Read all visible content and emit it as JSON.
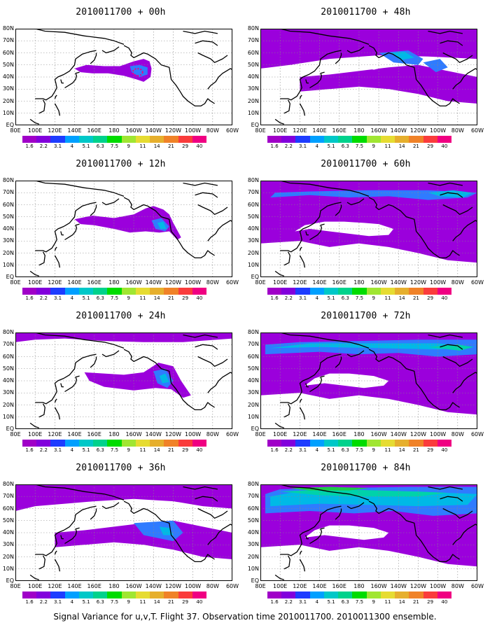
{
  "panels": [
    {
      "title": "2010011700 + 00h",
      "level": 0
    },
    {
      "title": "2010011700 + 48h",
      "level": 4
    },
    {
      "title": "2010011700 + 12h",
      "level": 1
    },
    {
      "title": "2010011700 + 60h",
      "level": 5
    },
    {
      "title": "2010011700 + 24h",
      "level": 2
    },
    {
      "title": "2010011700 + 72h",
      "level": 6
    },
    {
      "title": "2010011700 + 36h",
      "level": 3
    },
    {
      "title": "2010011700 + 84h",
      "level": 7
    }
  ],
  "lat_labels": [
    "80N",
    "70N",
    "60N",
    "50N",
    "40N",
    "30N",
    "20N",
    "10N",
    "EQ"
  ],
  "lon_labels": [
    "80E",
    "100E",
    "120E",
    "140E",
    "160E",
    "180",
    "160W",
    "140W",
    "120W",
    "100W",
    "80W",
    "60W"
  ],
  "colorbar": {
    "labels": [
      "1.6",
      "2.2",
      "3.1",
      "4",
      "5.1",
      "6.3",
      "7.5",
      "9",
      "11",
      "14",
      "21",
      "29",
      "40"
    ],
    "colors": [
      "#a000c8",
      "#8200dc",
      "#1e3cff",
      "#00a0ff",
      "#00c8c8",
      "#00d28c",
      "#00dc00",
      "#a0e632",
      "#e6dc32",
      "#e6af2d",
      "#f08228",
      "#fa3c3c",
      "#f00082"
    ]
  },
  "footer": "Signal Variance for u,v,T. Flight 37. Observation time 2010011700. 2010011300 ensemble."
}
